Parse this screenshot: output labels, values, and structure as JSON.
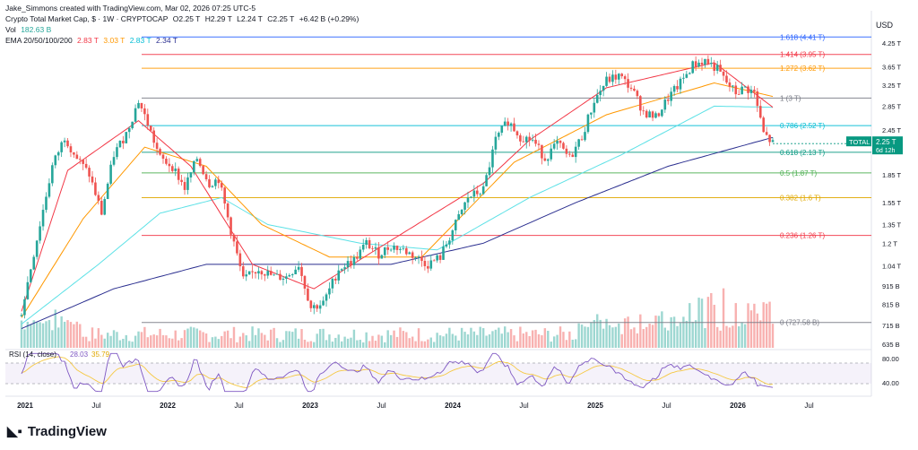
{
  "header": {
    "created_by": "Jake_Simmons created with TradingView.com, Mar 02, 2026 07:25 UTC-5",
    "symbol": "Crypto Total Market Cap, $ · 1W · CRYPTOCAP",
    "ohlc": {
      "o": "O2.25 T",
      "h": "H2.29 T",
      "l": "L2.24 T",
      "c": "C2.25 T",
      "chg": "+6.42 B (+0.29%)"
    },
    "vol_label": "Vol",
    "vol_value": "182.63 B",
    "ema_label": "EMA 20/50/100/200",
    "ema_values": [
      "2.83 T",
      "3.03 T",
      "2.83 T",
      "2.34 T"
    ],
    "ema_colors": [
      "#f23645",
      "#ff9800",
      "#5ce1e6",
      "#2a2e8f"
    ]
  },
  "currency": "USD",
  "rsi_label": "RSI (14, close)",
  "rsi_values": [
    "28.03",
    "35.79"
  ],
  "price_tag": {
    "name": "TOTAL",
    "value": "2.25 T",
    "countdown": "6d 12h"
  },
  "logo_text": "TradingView",
  "chart_data": {
    "type": "candlestick",
    "scale": "log",
    "yticks": [
      "4.25 T",
      "3.65 T",
      "3.25 T",
      "2.85 T",
      "2.45 T",
      "1.85 T",
      "1.55 T",
      "1.35 T",
      "1.2 T",
      "1.04 T",
      "915 B",
      "815 B",
      "715 B",
      "635 B"
    ],
    "ytick_values": [
      4.25,
      3.65,
      3.25,
      2.85,
      2.45,
      1.85,
      1.55,
      1.35,
      1.2,
      1.04,
      0.915,
      0.815,
      0.715,
      0.635
    ],
    "ylim": [
      0.62,
      4.7
    ],
    "xticks": [
      "2021",
      "Jul",
      "2022",
      "Jul",
      "2023",
      "Jul",
      "2024",
      "Jul",
      "2025",
      "Jul",
      "2026",
      "Jul"
    ],
    "fib_levels": [
      {
        "label": "1.618 (4.41 T)",
        "value": 4.41,
        "color": "#2962ff"
      },
      {
        "label": "1.414 (3.95 T)",
        "value": 3.95,
        "color": "#f23645"
      },
      {
        "label": "1.272 (3.62 T)",
        "value": 3.62,
        "color": "#ff9800"
      },
      {
        "label": "1 (3 T)",
        "value": 3.0,
        "color": "#787b86"
      },
      {
        "label": "0.786 (2.52 T)",
        "value": 2.52,
        "color": "#00bcd4"
      },
      {
        "label": "0.618 (2.13 T)",
        "value": 2.13,
        "color": "#089981"
      },
      {
        "label": "0.5 (1.87 T)",
        "value": 1.87,
        "color": "#4caf50"
      },
      {
        "label": "0.382 (1.6 T)",
        "value": 1.6,
        "color": "#e0a800"
      },
      {
        "label": "0.236 (1.26 T)",
        "value": 1.26,
        "color": "#f23645"
      },
      {
        "label": "0 (727.58 B)",
        "value": 0.7276,
        "color": "#787b86"
      }
    ],
    "weekly_close_anchors": [
      [
        0,
        0.78
      ],
      [
        6,
        1.35
      ],
      [
        10,
        1.95
      ],
      [
        14,
        2.35
      ],
      [
        18,
        2.05
      ],
      [
        22,
        1.85
      ],
      [
        26,
        1.45
      ],
      [
        30,
        2.1
      ],
      [
        34,
        2.4
      ],
      [
        38,
        2.95
      ],
      [
        41,
        2.55
      ],
      [
        45,
        2.05
      ],
      [
        49,
        1.95
      ],
      [
        53,
        1.7
      ],
      [
        57,
        2.05
      ],
      [
        61,
        1.75
      ],
      [
        64,
        1.8
      ],
      [
        68,
        1.3
      ],
      [
        72,
        0.95
      ],
      [
        77,
        1.02
      ],
      [
        82,
        0.97
      ],
      [
        86,
        0.97
      ],
      [
        90,
        1.05
      ],
      [
        94,
        0.8
      ],
      [
        98,
        0.82
      ],
      [
        103,
        1.02
      ],
      [
        108,
        1.08
      ],
      [
        112,
        1.2
      ],
      [
        116,
        1.12
      ],
      [
        120,
        1.18
      ],
      [
        124,
        1.15
      ],
      [
        128,
        1.1
      ],
      [
        132,
        1.05
      ],
      [
        136,
        1.1
      ],
      [
        140,
        1.3
      ],
      [
        145,
        1.6
      ],
      [
        150,
        1.68
      ],
      [
        154,
        2.3
      ],
      [
        158,
        2.6
      ],
      [
        162,
        2.35
      ],
      [
        166,
        2.3
      ],
      [
        170,
        2.05
      ],
      [
        174,
        2.25
      ],
      [
        178,
        2.05
      ],
      [
        182,
        2.35
      ],
      [
        186,
        2.95
      ],
      [
        190,
        3.35
      ],
      [
        194,
        3.45
      ],
      [
        198,
        3.2
      ],
      [
        202,
        2.75
      ],
      [
        206,
        2.65
      ],
      [
        210,
        3.0
      ],
      [
        214,
        3.3
      ],
      [
        218,
        3.7
      ],
      [
        222,
        3.8
      ],
      [
        226,
        3.6
      ],
      [
        229,
        3.3
      ],
      [
        232,
        3.1
      ],
      [
        235,
        3.2
      ],
      [
        238,
        3.1
      ],
      [
        241,
        2.4
      ],
      [
        244,
        2.25
      ]
    ],
    "ema_200_anchors": [
      [
        0,
        0.7
      ],
      [
        30,
        0.9
      ],
      [
        60,
        1.05
      ],
      [
        90,
        1.05
      ],
      [
        120,
        1.05
      ],
      [
        150,
        1.2
      ],
      [
        180,
        1.55
      ],
      [
        210,
        1.95
      ],
      [
        244,
        2.34
      ]
    ],
    "ema_100_anchors": [
      [
        0,
        0.72
      ],
      [
        25,
        1.05
      ],
      [
        45,
        1.45
      ],
      [
        65,
        1.6
      ],
      [
        80,
        1.35
      ],
      [
        110,
        1.2
      ],
      [
        135,
        1.15
      ],
      [
        165,
        1.6
      ],
      [
        195,
        2.1
      ],
      [
        225,
        2.85
      ],
      [
        244,
        2.83
      ]
    ],
    "ema_50_anchors": [
      [
        0,
        0.75
      ],
      [
        20,
        1.4
      ],
      [
        40,
        2.2
      ],
      [
        60,
        1.95
      ],
      [
        78,
        1.35
      ],
      [
        100,
        1.1
      ],
      [
        130,
        1.1
      ],
      [
        160,
        2.0
      ],
      [
        190,
        2.7
      ],
      [
        225,
        3.3
      ],
      [
        244,
        3.03
      ]
    ],
    "ema_20_anchors": [
      [
        0,
        0.78
      ],
      [
        15,
        1.9
      ],
      [
        38,
        2.6
      ],
      [
        55,
        1.95
      ],
      [
        75,
        1.05
      ],
      [
        95,
        0.9
      ],
      [
        115,
        1.15
      ],
      [
        150,
        1.75
      ],
      [
        165,
        2.3
      ],
      [
        190,
        3.2
      ],
      [
        225,
        3.75
      ],
      [
        244,
        2.83
      ]
    ],
    "rsi_ticks": [
      "80.00",
      "40.00"
    ],
    "colors": {
      "up": "#26a69a",
      "down": "#ef5350"
    }
  }
}
